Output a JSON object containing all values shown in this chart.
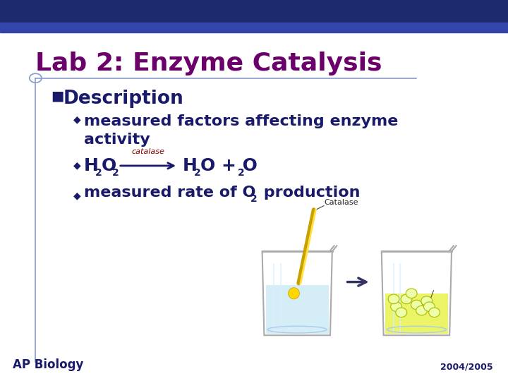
{
  "title": "Lab 2: Enzyme Catalysis",
  "title_color": "#6B006B",
  "title_fontsize": 26,
  "bg_color": "#FFFFFF",
  "top_bar_color": "#1E2A6E",
  "accent_line_color": "#8899CC",
  "bullet_header": "Description",
  "bullet_color": "#1A1A6B",
  "sub_text_color": "#1A1A6B",
  "catalase_color": "#800000",
  "footer_text": "AP Biology",
  "footer_color": "#1A1A6B",
  "year_text": "2004/2005",
  "year_color": "#1A1A6B",
  "diamond_color": "#1A1A6B",
  "arrow_color": "#1A1A6B"
}
